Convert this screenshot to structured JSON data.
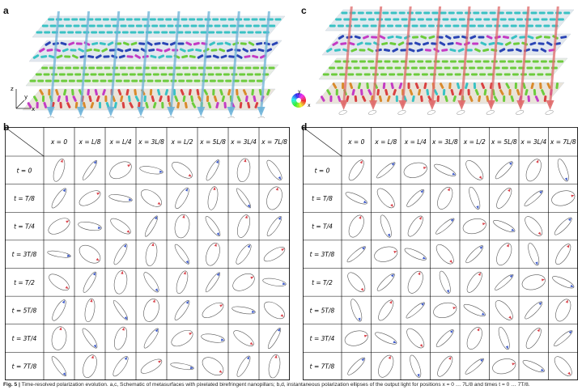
{
  "panels": {
    "a": "a",
    "b": "b",
    "c": "c",
    "d": "d"
  },
  "axes": {
    "x": "x",
    "y": "y",
    "z": "z"
  },
  "columns": [
    "x = 0",
    "x = L/8",
    "x = L/4",
    "x = 3L/8",
    "x = L/2",
    "x = 5L/8",
    "x = 3L/4",
    "x = 7L/8"
  ],
  "rows": [
    "t = 0",
    "t = T/8",
    "t = T/4",
    "t = 3T/8",
    "t = T/2",
    "t = 5T/8",
    "t = 3T/4",
    "t = 7T/8"
  ],
  "colors": {
    "red_arrow": "#d9434b",
    "blue_arrow": "#3b58c8",
    "ellipse": "#555555",
    "cyan_bar": "#39c2c4",
    "blue_bar": "#2a45b5",
    "green_bar": "#6ccc3c",
    "magenta_bar": "#c43bc4",
    "orange_bar": "#d98a2b",
    "light_blue_beam": "#6db3d8",
    "red_beam": "#e06a6a"
  },
  "caption": {
    "label": "Fig. 5 |",
    "text": "Time-resolved polarization evolution. a,c, Schematic of metasurfaces with pixelated birefringent nanopillars; b,d, instantaneous polarization ellipses of the output light for positions x = 0 … 7L/8 and times t = 0 … 7T/8."
  }
}
